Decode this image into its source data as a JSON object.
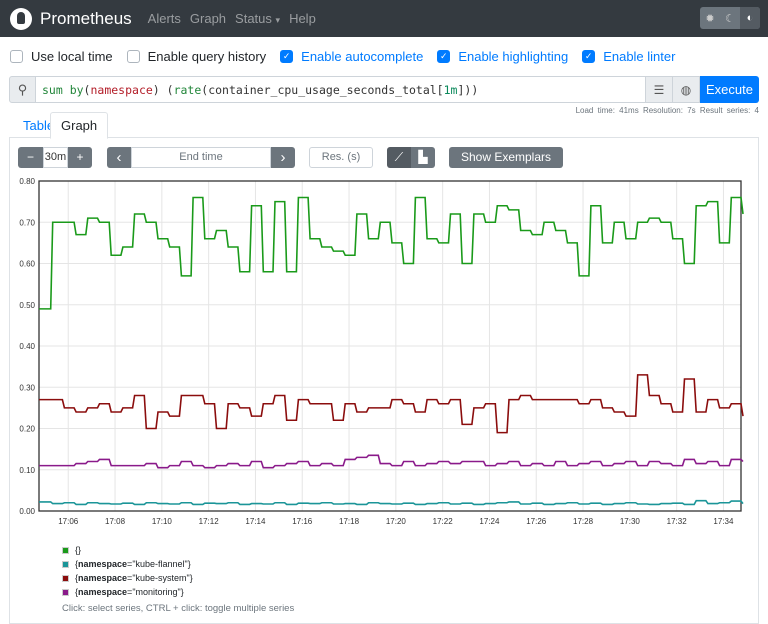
{
  "nav": {
    "brand": "Prometheus",
    "links": [
      "Alerts",
      "Graph",
      "Status",
      "Help"
    ],
    "status_caret": "▾",
    "theme_icons": [
      "gear-icon",
      "moon-icon",
      "contrast-icon"
    ]
  },
  "options": [
    {
      "label": "Use local time",
      "checked": false
    },
    {
      "label": "Enable query history",
      "checked": false
    },
    {
      "label": "Enable autocomplete",
      "checked": true
    },
    {
      "label": "Enable highlighting",
      "checked": true
    },
    {
      "label": "Enable linter",
      "checked": true
    }
  ],
  "query": {
    "parts": [
      [
        "sum by",
        "#22863a"
      ],
      [
        "(",
        "#333"
      ],
      [
        "namespace",
        "#b31d28"
      ],
      [
        ") (",
        "#333"
      ],
      [
        "rate",
        "#22863a"
      ],
      [
        "(container_cpu_usage_seconds_total[",
        "#333"
      ],
      [
        "1m",
        "#09885a"
      ],
      [
        "]))",
        "#333"
      ]
    ],
    "execute": "Execute"
  },
  "tabs": {
    "table": "Table",
    "graph": "Graph"
  },
  "stats": "Load time: 41ms   Resolution: 7s   Result series: 4",
  "controls": {
    "range": "30m",
    "minus": "−",
    "plus": "+",
    "prev": "‹",
    "next": "›",
    "end_time_placeholder": "End time",
    "res_placeholder": "Res. (s)",
    "show_exemplars": "Show Exemplars"
  },
  "chart_data": {
    "type": "line",
    "ylim": [
      0,
      0.8
    ],
    "yticks": [
      "0.00",
      "0.10",
      "0.20",
      "0.30",
      "0.40",
      "0.50",
      "0.60",
      "0.70",
      "0.80"
    ],
    "xticks": [
      "17:06",
      "17:08",
      "17:10",
      "17:12",
      "17:14",
      "17:16",
      "17:18",
      "17:20",
      "17:22",
      "17:24",
      "17:26",
      "17:28",
      "17:30",
      "17:32",
      "17:34"
    ],
    "x_range": [
      "17:04:45",
      "17:34:45"
    ],
    "x_step_seconds": 30,
    "grid": true,
    "series": [
      {
        "name": "{}",
        "color": "#1a9a1a",
        "values": [
          0.49,
          0.7,
          0.7,
          0.67,
          0.71,
          0.7,
          0.62,
          0.64,
          0.72,
          0.7,
          0.66,
          0.64,
          0.57,
          0.76,
          0.66,
          0.68,
          0.64,
          0.58,
          0.74,
          0.58,
          0.75,
          0.58,
          0.76,
          0.66,
          0.64,
          0.63,
          0.62,
          0.72,
          0.66,
          0.7,
          0.65,
          0.6,
          0.76,
          0.66,
          0.65,
          0.72,
          0.6,
          0.72,
          0.7,
          0.74,
          0.73,
          0.68,
          0.67,
          0.7,
          0.68,
          0.65,
          0.57,
          0.74,
          0.65,
          0.7,
          0.66,
          0.7,
          0.71,
          0.7,
          0.66,
          0.6,
          0.74,
          0.75,
          0.65,
          0.76,
          0.72
        ]
      },
      {
        "name": "{namespace=\"kube-flannel\"}",
        "color": "#1b9598",
        "values": [
          0.022,
          0.018,
          0.02,
          0.016,
          0.02,
          0.018,
          0.017,
          0.019,
          0.016,
          0.02,
          0.018,
          0.017,
          0.02,
          0.016,
          0.019,
          0.018,
          0.02,
          0.016,
          0.018,
          0.017,
          0.02,
          0.016,
          0.019,
          0.018,
          0.02,
          0.017,
          0.018,
          0.016,
          0.02,
          0.018,
          0.017,
          0.019,
          0.016,
          0.018,
          0.02,
          0.017,
          0.019,
          0.016,
          0.018,
          0.02,
          0.022,
          0.017,
          0.019,
          0.016,
          0.018,
          0.02,
          0.017,
          0.019,
          0.016,
          0.018,
          0.02,
          0.017,
          0.016,
          0.018,
          0.019,
          0.016,
          0.025,
          0.018,
          0.02,
          0.024,
          0.018
        ]
      },
      {
        "name": "{namespace=\"kube-system\"}",
        "color": "#8b0d0d",
        "values": [
          0.27,
          0.27,
          0.25,
          0.24,
          0.25,
          0.26,
          0.24,
          0.25,
          0.28,
          0.2,
          0.24,
          0.23,
          0.28,
          0.28,
          0.26,
          0.2,
          0.26,
          0.25,
          0.23,
          0.26,
          0.28,
          0.22,
          0.27,
          0.26,
          0.26,
          0.22,
          0.26,
          0.24,
          0.25,
          0.25,
          0.27,
          0.26,
          0.24,
          0.27,
          0.26,
          0.27,
          0.21,
          0.25,
          0.26,
          0.19,
          0.27,
          0.28,
          0.27,
          0.27,
          0.27,
          0.27,
          0.26,
          0.27,
          0.25,
          0.24,
          0.23,
          0.33,
          0.28,
          0.26,
          0.24,
          0.32,
          0.24,
          0.27,
          0.25,
          0.26,
          0.23
        ]
      },
      {
        "name": "{namespace=\"monitoring\"}",
        "color": "#8a1a8a",
        "values": [
          0.11,
          0.11,
          0.11,
          0.115,
          0.12,
          0.125,
          0.11,
          0.11,
          0.11,
          0.115,
          0.105,
          0.11,
          0.12,
          0.11,
          0.105,
          0.11,
          0.115,
          0.11,
          0.12,
          0.105,
          0.11,
          0.115,
          0.12,
          0.11,
          0.115,
          0.11,
          0.125,
          0.13,
          0.135,
          0.115,
          0.11,
          0.12,
          0.11,
          0.115,
          0.12,
          0.115,
          0.12,
          0.12,
          0.11,
          0.115,
          0.12,
          0.11,
          0.115,
          0.11,
          0.12,
          0.11,
          0.115,
          0.12,
          0.11,
          0.115,
          0.12,
          0.11,
          0.12,
          0.115,
          0.11,
          0.125,
          0.115,
          0.12,
          0.11,
          0.125,
          0.12
        ]
      }
    ]
  },
  "legend_hint": "Click: select series, CTRL + click: toggle multiple series",
  "legend": [
    {
      "key": "",
      "value": "{}",
      "color": "#1a9a1a"
    },
    {
      "key": "namespace",
      "value": "\"kube-flannel\"",
      "color": "#1b9598"
    },
    {
      "key": "namespace",
      "value": "\"kube-system\"",
      "color": "#8b0d0d"
    },
    {
      "key": "namespace",
      "value": "\"monitoring\"",
      "color": "#8a1a8a"
    }
  ]
}
